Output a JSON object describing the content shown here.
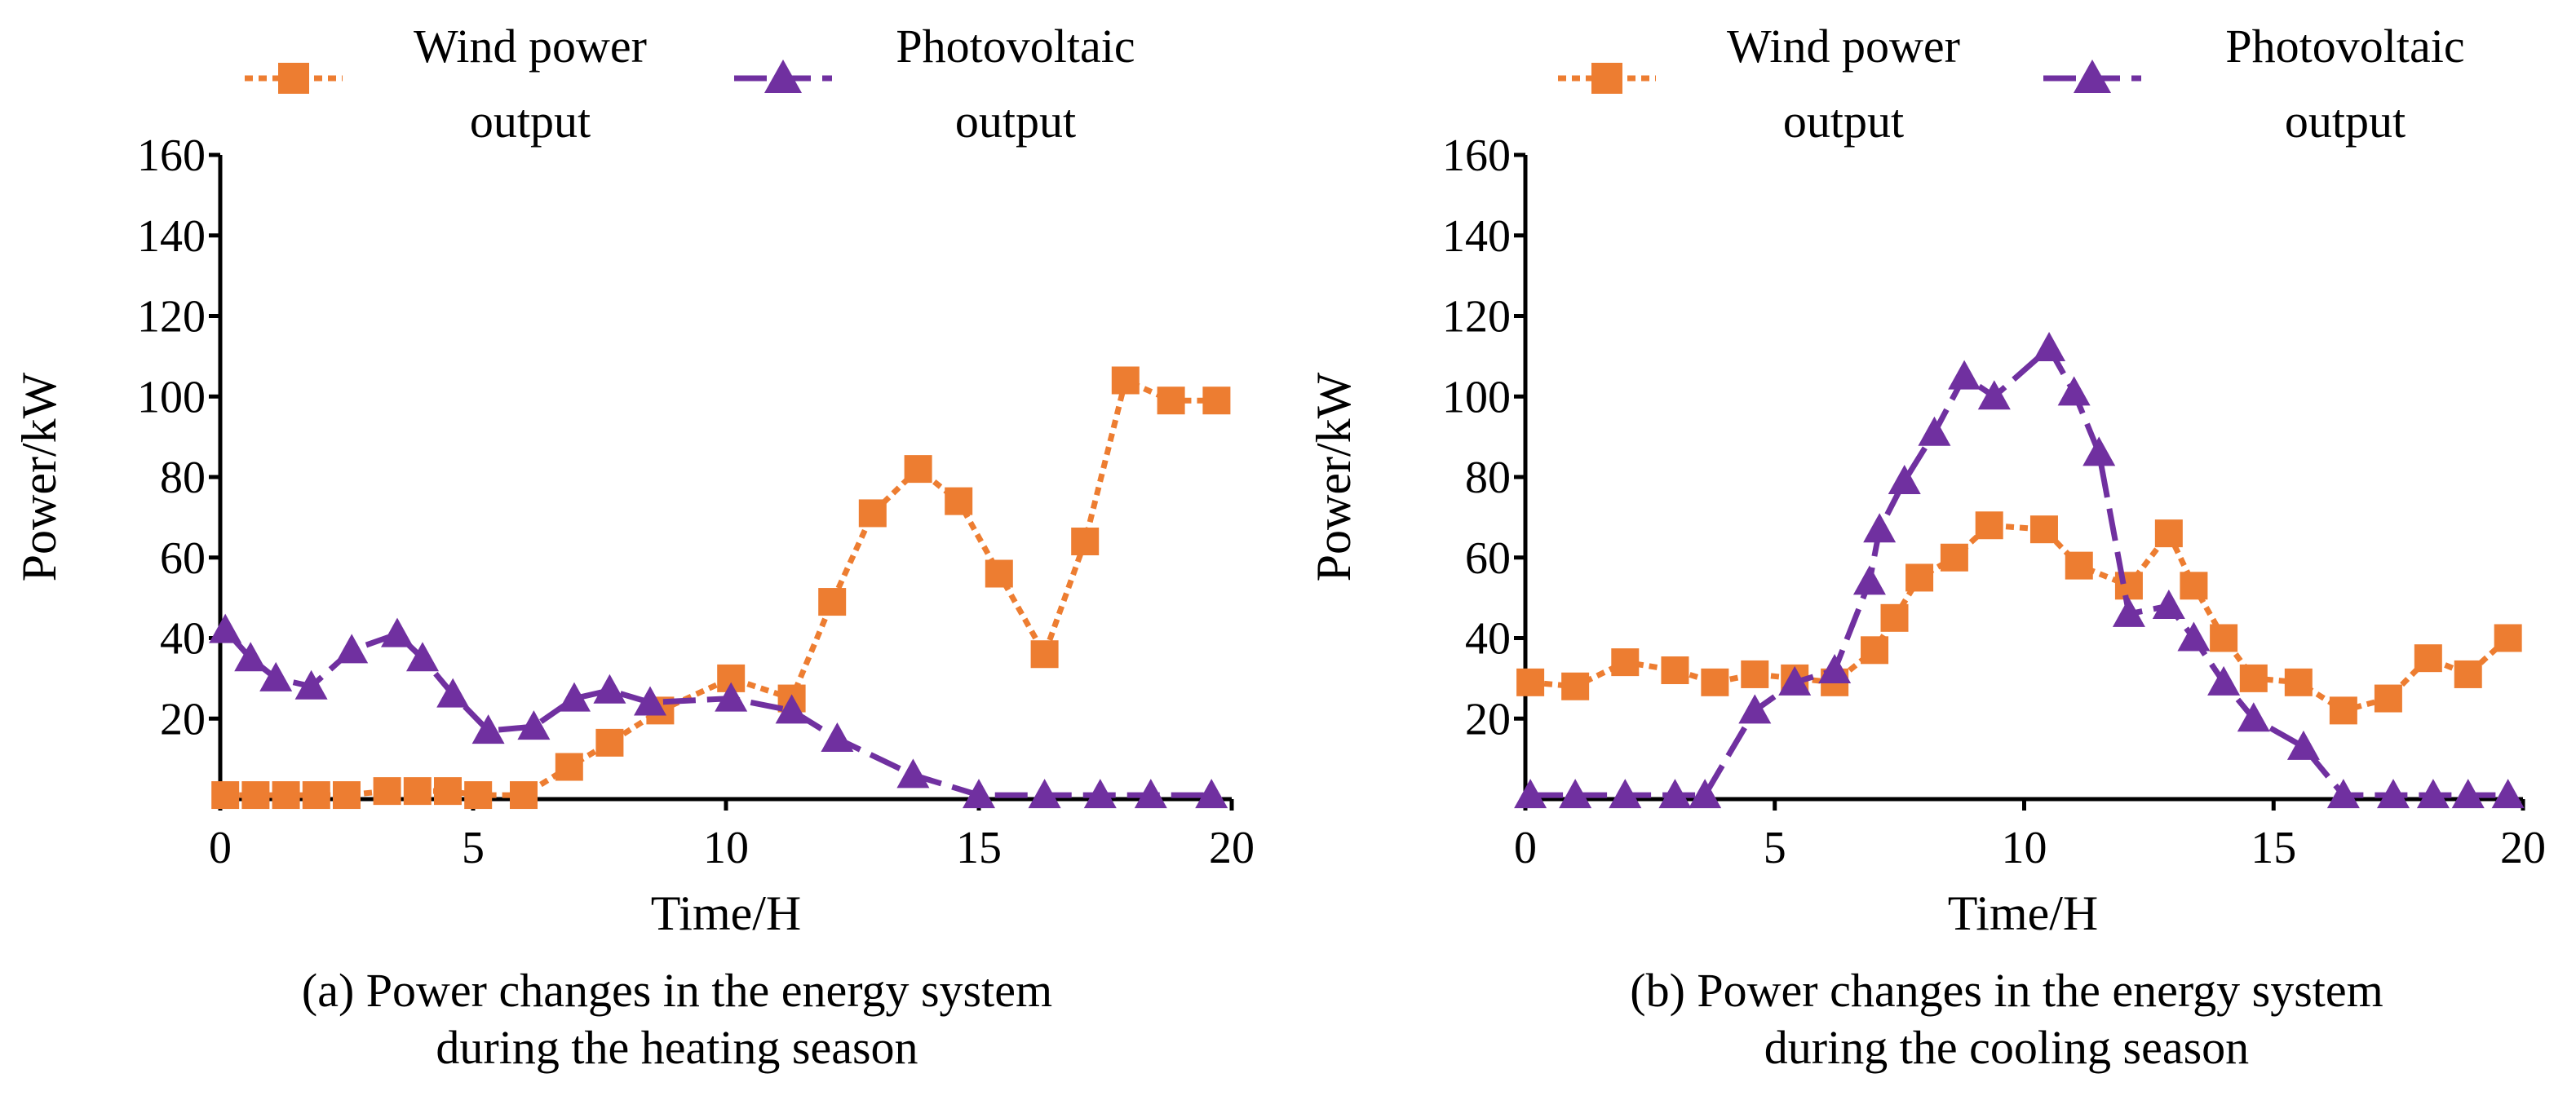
{
  "legend": {
    "wind": {
      "line1": "Wind power",
      "line2": "output"
    },
    "pv": {
      "line1": "Photovoltaic",
      "line2": "output"
    }
  },
  "colors": {
    "wind": "#ED7D31",
    "pv": "#7030A0"
  },
  "chart_data": [
    {
      "type": "line",
      "caption_line1": "(a) Power changes in the energy system",
      "caption_line2": "during the heating season",
      "xlabel": "Time/H",
      "ylabel": "Power/kW",
      "xlim": [
        0,
        20
      ],
      "ylim": [
        0,
        160
      ],
      "xticks": [
        0,
        5,
        10,
        15,
        20
      ],
      "yticks": [
        20,
        40,
        60,
        80,
        100,
        120,
        140,
        160
      ],
      "series": [
        {
          "name": "Wind power output",
          "key": "wind",
          "marker": "square",
          "x": [
            0.1,
            0.7,
            1.3,
            1.9,
            2.5,
            3.3,
            3.9,
            4.5,
            5.1,
            6.0,
            6.9,
            7.7,
            8.7,
            10.1,
            11.3,
            12.1,
            12.9,
            13.8,
            14.6,
            15.4,
            16.3,
            17.1,
            17.9,
            18.8,
            19.7
          ],
          "y": [
            1,
            1,
            1,
            1,
            1,
            2,
            2,
            2,
            1,
            1,
            8,
            14,
            22,
            30,
            25,
            49,
            71,
            82,
            74,
            56,
            36,
            64,
            104,
            99,
            99
          ]
        },
        {
          "name": "Photovoltaic output",
          "key": "pv",
          "marker": "triangle",
          "x": [
            0.1,
            0.6,
            1.1,
            1.8,
            2.6,
            3.5,
            4.0,
            4.6,
            5.3,
            6.2,
            7.0,
            7.7,
            8.5,
            10.1,
            11.3,
            12.2,
            13.7,
            15.0,
            16.3,
            17.4,
            18.4,
            19.6
          ],
          "y": [
            42,
            35,
            30,
            28,
            37,
            41,
            35,
            26,
            17,
            18,
            25,
            27,
            24,
            25,
            22,
            15,
            6,
            1,
            1,
            1,
            1,
            1
          ]
        }
      ]
    },
    {
      "type": "line",
      "caption_line1": "(b) Power changes in the energy system",
      "caption_line2": "during the cooling season",
      "xlabel": "Time/H",
      "ylabel": "Power/kW",
      "xlim": [
        0,
        20
      ],
      "ylim": [
        0,
        160
      ],
      "xticks": [
        0,
        5,
        10,
        15,
        20
      ],
      "yticks": [
        20,
        40,
        60,
        80,
        100,
        120,
        140,
        160
      ],
      "series": [
        {
          "name": "Wind power output",
          "key": "wind",
          "marker": "square",
          "x": [
            0.1,
            1.0,
            2.0,
            3.0,
            3.8,
            4.6,
            5.4,
            6.2,
            7.0,
            7.4,
            7.9,
            8.6,
            9.3,
            10.4,
            11.1,
            12.1,
            12.9,
            13.4,
            14.0,
            14.6,
            15.5,
            16.4,
            17.3,
            18.1,
            18.9,
            19.7
          ],
          "y": [
            29,
            28,
            34,
            32,
            29,
            31,
            30,
            29,
            37,
            45,
            55,
            60,
            68,
            67,
            58,
            53,
            66,
            53,
            40,
            30,
            29,
            22,
            25,
            35,
            31,
            40
          ]
        },
        {
          "name": "Photovoltaic output",
          "key": "pv",
          "marker": "triangle",
          "x": [
            0.1,
            1.0,
            2.0,
            3.0,
            3.6,
            4.6,
            5.4,
            6.2,
            6.9,
            7.1,
            7.6,
            8.2,
            8.8,
            9.4,
            10.5,
            11.0,
            11.5,
            12.1,
            12.9,
            13.4,
            14.0,
            14.6,
            15.6,
            16.4,
            17.4,
            18.2,
            18.9,
            19.7
          ],
          "y": [
            1,
            1,
            1,
            1,
            1,
            22,
            29,
            32,
            54,
            67,
            79,
            91,
            105,
            100,
            112,
            101,
            86,
            46,
            48,
            40,
            29,
            20,
            13,
            1,
            1,
            1,
            1,
            1
          ]
        }
      ]
    }
  ]
}
